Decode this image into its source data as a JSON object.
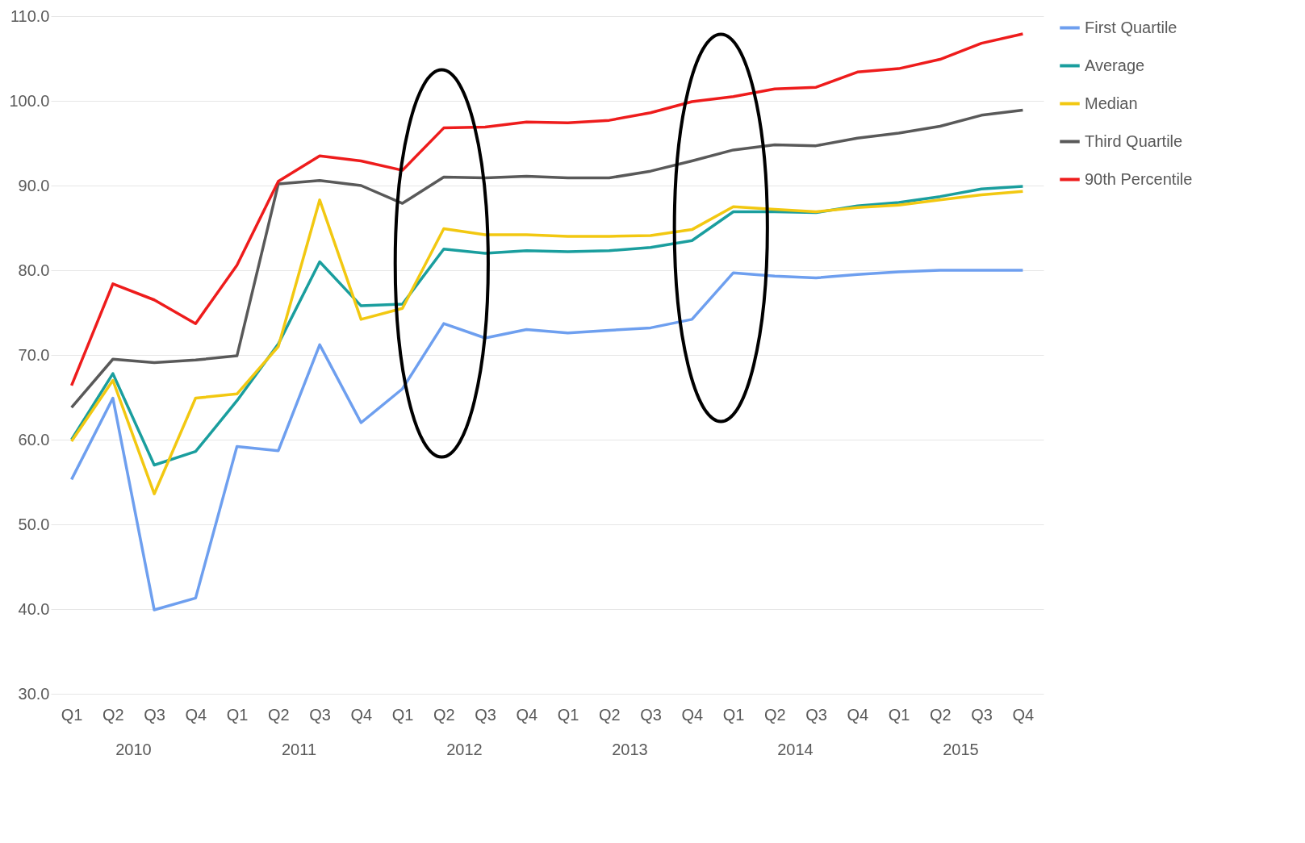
{
  "chart_data": {
    "type": "line",
    "categories": [
      "Q1",
      "Q2",
      "Q3",
      "Q4",
      "Q1",
      "Q2",
      "Q3",
      "Q4",
      "Q1",
      "Q2",
      "Q3",
      "Q4",
      "Q1",
      "Q2",
      "Q3",
      "Q4",
      "Q1",
      "Q2",
      "Q3",
      "Q4",
      "Q1",
      "Q2",
      "Q3",
      "Q4"
    ],
    "annotations": [
      "2010",
      "2011",
      "2012",
      "2013",
      "2014",
      "2015"
    ],
    "series": [
      {
        "name": "First Quartile",
        "color": "#6e9fef",
        "values": [
          55.3,
          64.9,
          39.9,
          41.3,
          59.2,
          58.7,
          71.2,
          62.0,
          66.0,
          73.7,
          72.0,
          73.0,
          72.6,
          72.9,
          73.2,
          74.2,
          79.7,
          79.3,
          79.1,
          79.5,
          79.8,
          80.0,
          80.0,
          80.0
        ]
      },
      {
        "name": "Average",
        "color": "#1a9e9e",
        "values": [
          60.0,
          67.8,
          57.0,
          58.6,
          64.6,
          71.3,
          81.0,
          75.8,
          76.0,
          82.5,
          82.0,
          82.3,
          82.2,
          82.3,
          82.7,
          83.5,
          86.9,
          86.9,
          86.8,
          87.6,
          88.0,
          88.7,
          89.6,
          89.9
        ]
      },
      {
        "name": "Median",
        "color": "#f2c811",
        "values": [
          59.8,
          67.0,
          53.6,
          64.9,
          65.4,
          71.0,
          88.3,
          74.2,
          75.5,
          84.9,
          84.2,
          84.2,
          84.0,
          84.0,
          84.1,
          84.8,
          87.5,
          87.2,
          86.9,
          87.4,
          87.7,
          88.3,
          88.9,
          89.3
        ]
      },
      {
        "name": "Third Quartile",
        "color": "#595959",
        "values": [
          63.8,
          69.5,
          69.1,
          69.4,
          69.9,
          90.2,
          90.6,
          90.0,
          87.9,
          91.0,
          90.9,
          91.1,
          90.9,
          90.9,
          91.7,
          92.9,
          94.2,
          94.8,
          94.7,
          95.6,
          96.2,
          97.0,
          98.3,
          98.9
        ]
      },
      {
        "name": "90th Percentile",
        "color": "#ee1c1c",
        "values": [
          66.4,
          78.4,
          76.5,
          73.7,
          80.6,
          90.5,
          93.5,
          92.9,
          91.8,
          96.8,
          96.9,
          97.5,
          97.4,
          97.7,
          98.6,
          99.9,
          100.5,
          101.4,
          101.6,
          103.4,
          103.8,
          104.9,
          106.8,
          107.9
        ]
      }
    ],
    "ylim": [
      30,
      110
    ],
    "yticks": [
      {
        "value": 30,
        "label": "30.0"
      },
      {
        "value": 40,
        "label": "40.0"
      },
      {
        "value": 50,
        "label": "50.0"
      },
      {
        "value": 60,
        "label": "60.0"
      },
      {
        "value": 70,
        "label": "70.0"
      },
      {
        "value": 80,
        "label": "80.0"
      },
      {
        "value": 90,
        "label": "90.0"
      },
      {
        "value": 100,
        "label": "100.0"
      },
      {
        "value": 110,
        "label": "110.0"
      }
    ],
    "grid": "y",
    "legend": "right",
    "marker": "none",
    "line_style": "solid"
  }
}
